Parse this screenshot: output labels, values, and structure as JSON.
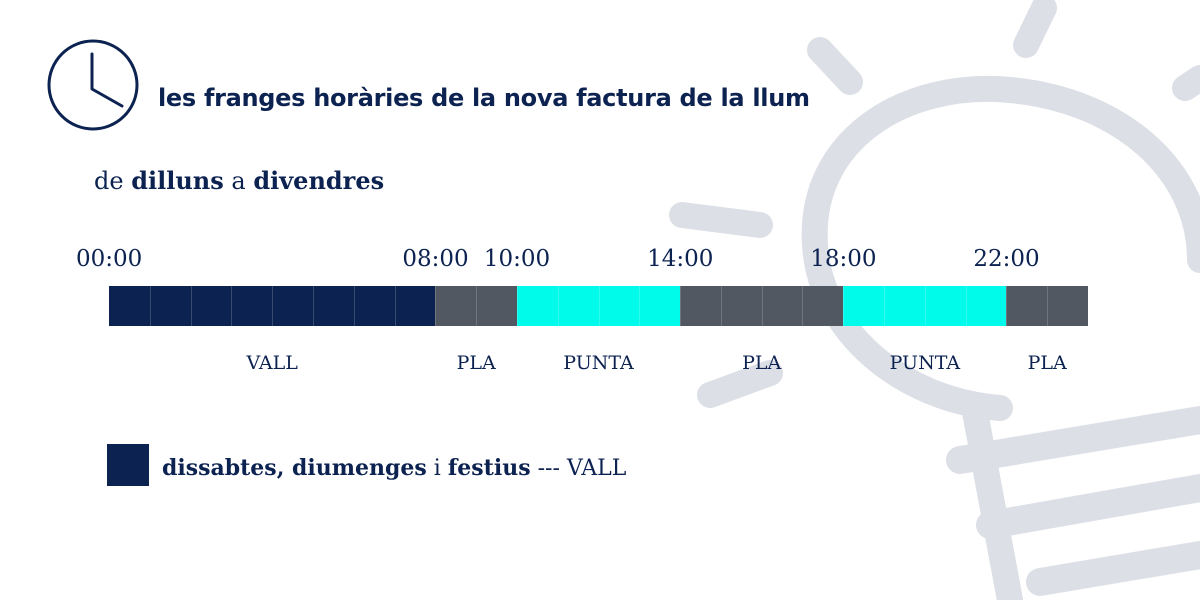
{
  "colors": {
    "navy": "#0c2250",
    "grey": "#515862",
    "cyan": "#00fbea",
    "bulb": "#dcdfe6",
    "text": "#0c2250"
  },
  "header": {
    "icon": "clock-icon",
    "title": "les franges horàries de la nova factura de la llum"
  },
  "subtitle": {
    "pre": "de ",
    "day_from": "dilluns",
    "mid": " a ",
    "day_to": "divendres"
  },
  "timeline": {
    "ticks": [
      "00:00",
      "08:00",
      "10:00",
      "14:00",
      "18:00",
      "22:00"
    ],
    "segments": [
      {
        "from": "00:00",
        "to": "08:00",
        "band": "VALL",
        "label": "VALL"
      },
      {
        "from": "08:00",
        "to": "10:00",
        "band": "PLA",
        "label": "PLA"
      },
      {
        "from": "10:00",
        "to": "14:00",
        "band": "PUNTA",
        "label": "PUNTA"
      },
      {
        "from": "14:00",
        "to": "18:00",
        "band": "PLA",
        "label": "PLA"
      },
      {
        "from": "18:00",
        "to": "22:00",
        "band": "PUNTA",
        "label": "PUNTA"
      },
      {
        "from": "22:00",
        "to": "24:00",
        "band": "PLA",
        "label": "PLA"
      }
    ]
  },
  "legend": {
    "part1": "dissabtes, diumenges",
    "sep1": " i ",
    "part2": "festius",
    "suffix": " --- VALL"
  }
}
